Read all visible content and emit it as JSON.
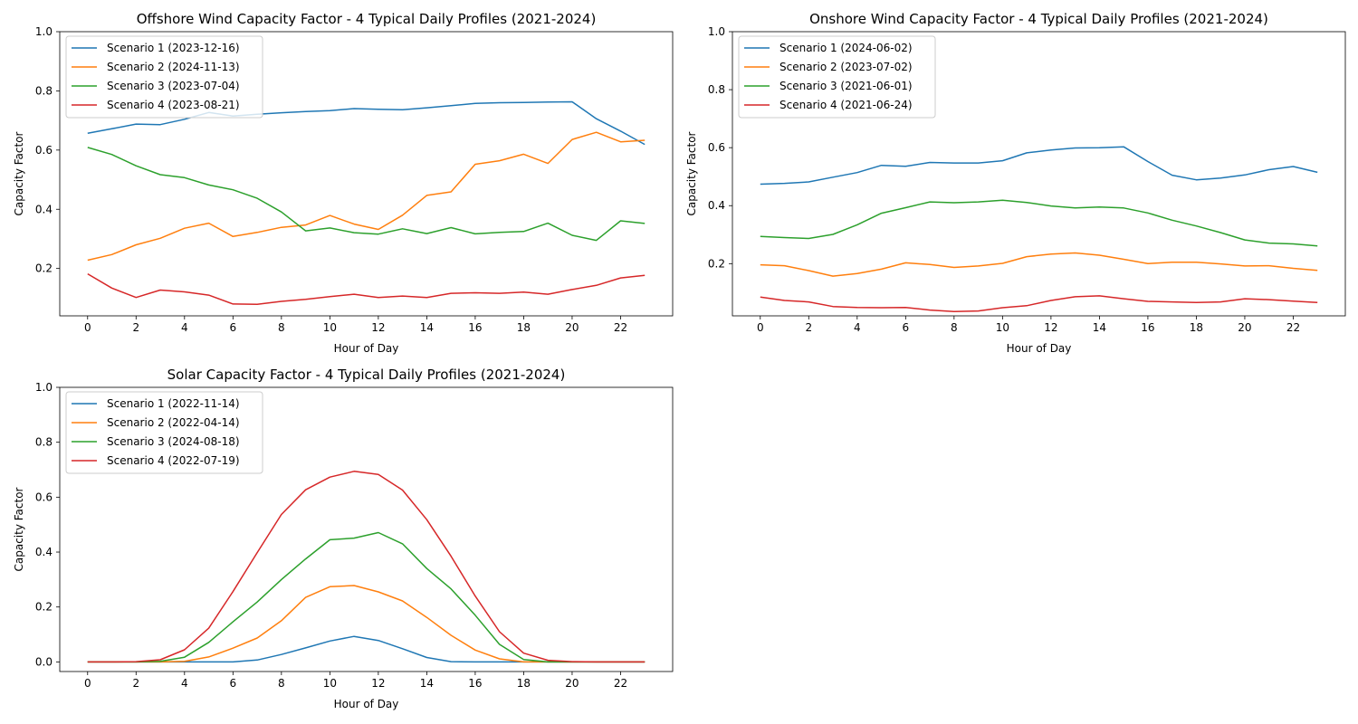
{
  "chart_data": [
    {
      "type": "line",
      "title": "Offshore Wind Capacity Factor - 4 Typical Daily Profiles (2021-2024)",
      "xlabel": "Hour of Day",
      "ylabel": "Capacity Factor",
      "xlim": [
        -1.15,
        24.15
      ],
      "ylim": [
        0.04,
        1.0
      ],
      "xticks": [
        "0",
        "2",
        "4",
        "6",
        "8",
        "10",
        "12",
        "14",
        "16",
        "18",
        "20",
        "22"
      ],
      "yticks": [
        "0.2",
        "0.4",
        "0.6",
        "0.8",
        "1.0"
      ],
      "legend_position": "upper-left",
      "x": [
        0,
        1,
        2,
        3,
        4,
        5,
        6,
        7,
        8,
        9,
        10,
        11,
        12,
        13,
        14,
        15,
        16,
        17,
        18,
        19,
        20,
        21,
        22,
        23
      ],
      "series": [
        {
          "name": "Scenario 1 (2023-12-16)",
          "color": "#1f77b4",
          "values": [
            0.657,
            0.672,
            0.688,
            0.686,
            0.704,
            0.727,
            0.715,
            0.721,
            0.726,
            0.73,
            0.733,
            0.74,
            0.738,
            0.736,
            0.743,
            0.75,
            0.758,
            0.76,
            0.761,
            0.762,
            0.763,
            0.706,
            0.664,
            0.619
          ]
        },
        {
          "name": "Scenario 2 (2024-11-13)",
          "color": "#ff7f0e",
          "values": [
            0.228,
            0.247,
            0.28,
            0.302,
            0.336,
            0.353,
            0.308,
            0.322,
            0.339,
            0.347,
            0.379,
            0.35,
            0.332,
            0.38,
            0.447,
            0.459,
            0.552,
            0.564,
            0.586,
            0.555,
            0.636,
            0.66,
            0.628,
            0.633
          ]
        },
        {
          "name": "Scenario 3 (2023-07-04)",
          "color": "#2ca02c",
          "values": [
            0.609,
            0.585,
            0.547,
            0.517,
            0.507,
            0.482,
            0.466,
            0.437,
            0.391,
            0.327,
            0.337,
            0.321,
            0.316,
            0.334,
            0.318,
            0.338,
            0.317,
            0.322,
            0.325,
            0.353,
            0.312,
            0.295,
            0.361,
            0.352
          ]
        },
        {
          "name": "Scenario 4 (2023-08-21)",
          "color": "#d62728",
          "values": [
            0.182,
            0.134,
            0.102,
            0.127,
            0.121,
            0.11,
            0.08,
            0.079,
            0.089,
            0.096,
            0.105,
            0.113,
            0.102,
            0.107,
            0.102,
            0.116,
            0.118,
            0.116,
            0.12,
            0.113,
            0.129,
            0.143,
            0.168,
            0.177
          ]
        }
      ]
    },
    {
      "type": "line",
      "title": "Onshore Wind Capacity Factor - 4 Typical Daily Profiles (2021-2024)",
      "xlabel": "Hour of Day",
      "ylabel": "Capacity Factor",
      "xlim": [
        -1.15,
        24.15
      ],
      "ylim": [
        0.02,
        1.0
      ],
      "xticks": [
        "0",
        "2",
        "4",
        "6",
        "8",
        "10",
        "12",
        "14",
        "16",
        "18",
        "20",
        "22"
      ],
      "yticks": [
        "0.2",
        "0.4",
        "0.6",
        "0.8",
        "1.0"
      ],
      "legend_position": "upper-left",
      "x": [
        0,
        1,
        2,
        3,
        4,
        5,
        6,
        7,
        8,
        9,
        10,
        11,
        12,
        13,
        14,
        15,
        16,
        17,
        18,
        19,
        20,
        21,
        22,
        23
      ],
      "series": [
        {
          "name": "Scenario 1 (2024-06-02)",
          "color": "#1f77b4",
          "values": [
            0.474,
            0.477,
            0.482,
            0.498,
            0.514,
            0.539,
            0.536,
            0.549,
            0.547,
            0.547,
            0.555,
            0.582,
            0.592,
            0.599,
            0.6,
            0.603,
            0.552,
            0.505,
            0.489,
            0.495,
            0.506,
            0.524,
            0.535,
            0.515
          ]
        },
        {
          "name": "Scenario 2 (2023-07-02)",
          "color": "#ff7f0e",
          "values": [
            0.196,
            0.193,
            0.176,
            0.157,
            0.166,
            0.181,
            0.203,
            0.197,
            0.187,
            0.192,
            0.201,
            0.224,
            0.233,
            0.237,
            0.229,
            0.215,
            0.2,
            0.205,
            0.205,
            0.199,
            0.192,
            0.193,
            0.184,
            0.177
          ]
        },
        {
          "name": "Scenario 3 (2021-06-01)",
          "color": "#2ca02c",
          "values": [
            0.294,
            0.29,
            0.287,
            0.301,
            0.334,
            0.374,
            0.393,
            0.413,
            0.41,
            0.413,
            0.419,
            0.411,
            0.399,
            0.392,
            0.395,
            0.392,
            0.375,
            0.35,
            0.33,
            0.307,
            0.282,
            0.271,
            0.268,
            0.261
          ]
        },
        {
          "name": "Scenario 4 (2021-06-24)",
          "color": "#d62728",
          "values": [
            0.085,
            0.073,
            0.068,
            0.052,
            0.049,
            0.048,
            0.049,
            0.04,
            0.035,
            0.037,
            0.048,
            0.055,
            0.073,
            0.086,
            0.089,
            0.079,
            0.07,
            0.068,
            0.066,
            0.068,
            0.079,
            0.076,
            0.071,
            0.066
          ]
        }
      ]
    },
    {
      "type": "line",
      "title": "Solar Capacity Factor - 4 Typical Daily Profiles (2021-2024)",
      "xlabel": "Hour of Day",
      "ylabel": "Capacity Factor",
      "xlim": [
        -1.15,
        24.15
      ],
      "ylim": [
        -0.035,
        1.0
      ],
      "xticks": [
        "0",
        "2",
        "4",
        "6",
        "8",
        "10",
        "12",
        "14",
        "16",
        "18",
        "20",
        "22"
      ],
      "yticks": [
        "0.0",
        "0.2",
        "0.4",
        "0.6",
        "0.8",
        "1.0"
      ],
      "legend_position": "upper-left",
      "x": [
        0,
        1,
        2,
        3,
        4,
        5,
        6,
        7,
        8,
        9,
        10,
        11,
        12,
        13,
        14,
        15,
        16,
        17,
        18,
        19,
        20,
        21,
        22,
        23
      ],
      "series": [
        {
          "name": "Scenario 1 (2022-11-14)",
          "color": "#1f77b4",
          "values": [
            0.0,
            0.0,
            0.0,
            0.0,
            0.0,
            0.0,
            0.0,
            0.007,
            0.027,
            0.051,
            0.076,
            0.093,
            0.078,
            0.048,
            0.016,
            0.001,
            0.0,
            0.0,
            0.0,
            0.0,
            0.0,
            0.0,
            0.0,
            0.0
          ]
        },
        {
          "name": "Scenario 2 (2022-04-14)",
          "color": "#ff7f0e",
          "values": [
            0.0,
            0.0,
            0.0,
            0.0,
            0.002,
            0.018,
            0.05,
            0.087,
            0.15,
            0.235,
            0.274,
            0.278,
            0.255,
            0.222,
            0.162,
            0.097,
            0.043,
            0.011,
            0.0,
            0.0,
            0.0,
            0.0,
            0.0,
            0.0
          ]
        },
        {
          "name": "Scenario 3 (2024-08-18)",
          "color": "#2ca02c",
          "values": [
            0.0,
            0.0,
            0.0,
            0.002,
            0.017,
            0.071,
            0.146,
            0.218,
            0.3,
            0.375,
            0.445,
            0.451,
            0.471,
            0.43,
            0.34,
            0.266,
            0.17,
            0.064,
            0.009,
            0.0,
            0.0,
            0.0,
            0.0,
            0.0
          ]
        },
        {
          "name": "Scenario 4 (2022-07-19)",
          "color": "#d62728",
          "values": [
            0.0,
            0.0,
            0.001,
            0.008,
            0.044,
            0.123,
            0.256,
            0.398,
            0.537,
            0.627,
            0.673,
            0.694,
            0.683,
            0.626,
            0.518,
            0.385,
            0.24,
            0.11,
            0.032,
            0.006,
            0.001,
            0.0,
            0.0,
            0.0
          ]
        }
      ]
    }
  ]
}
